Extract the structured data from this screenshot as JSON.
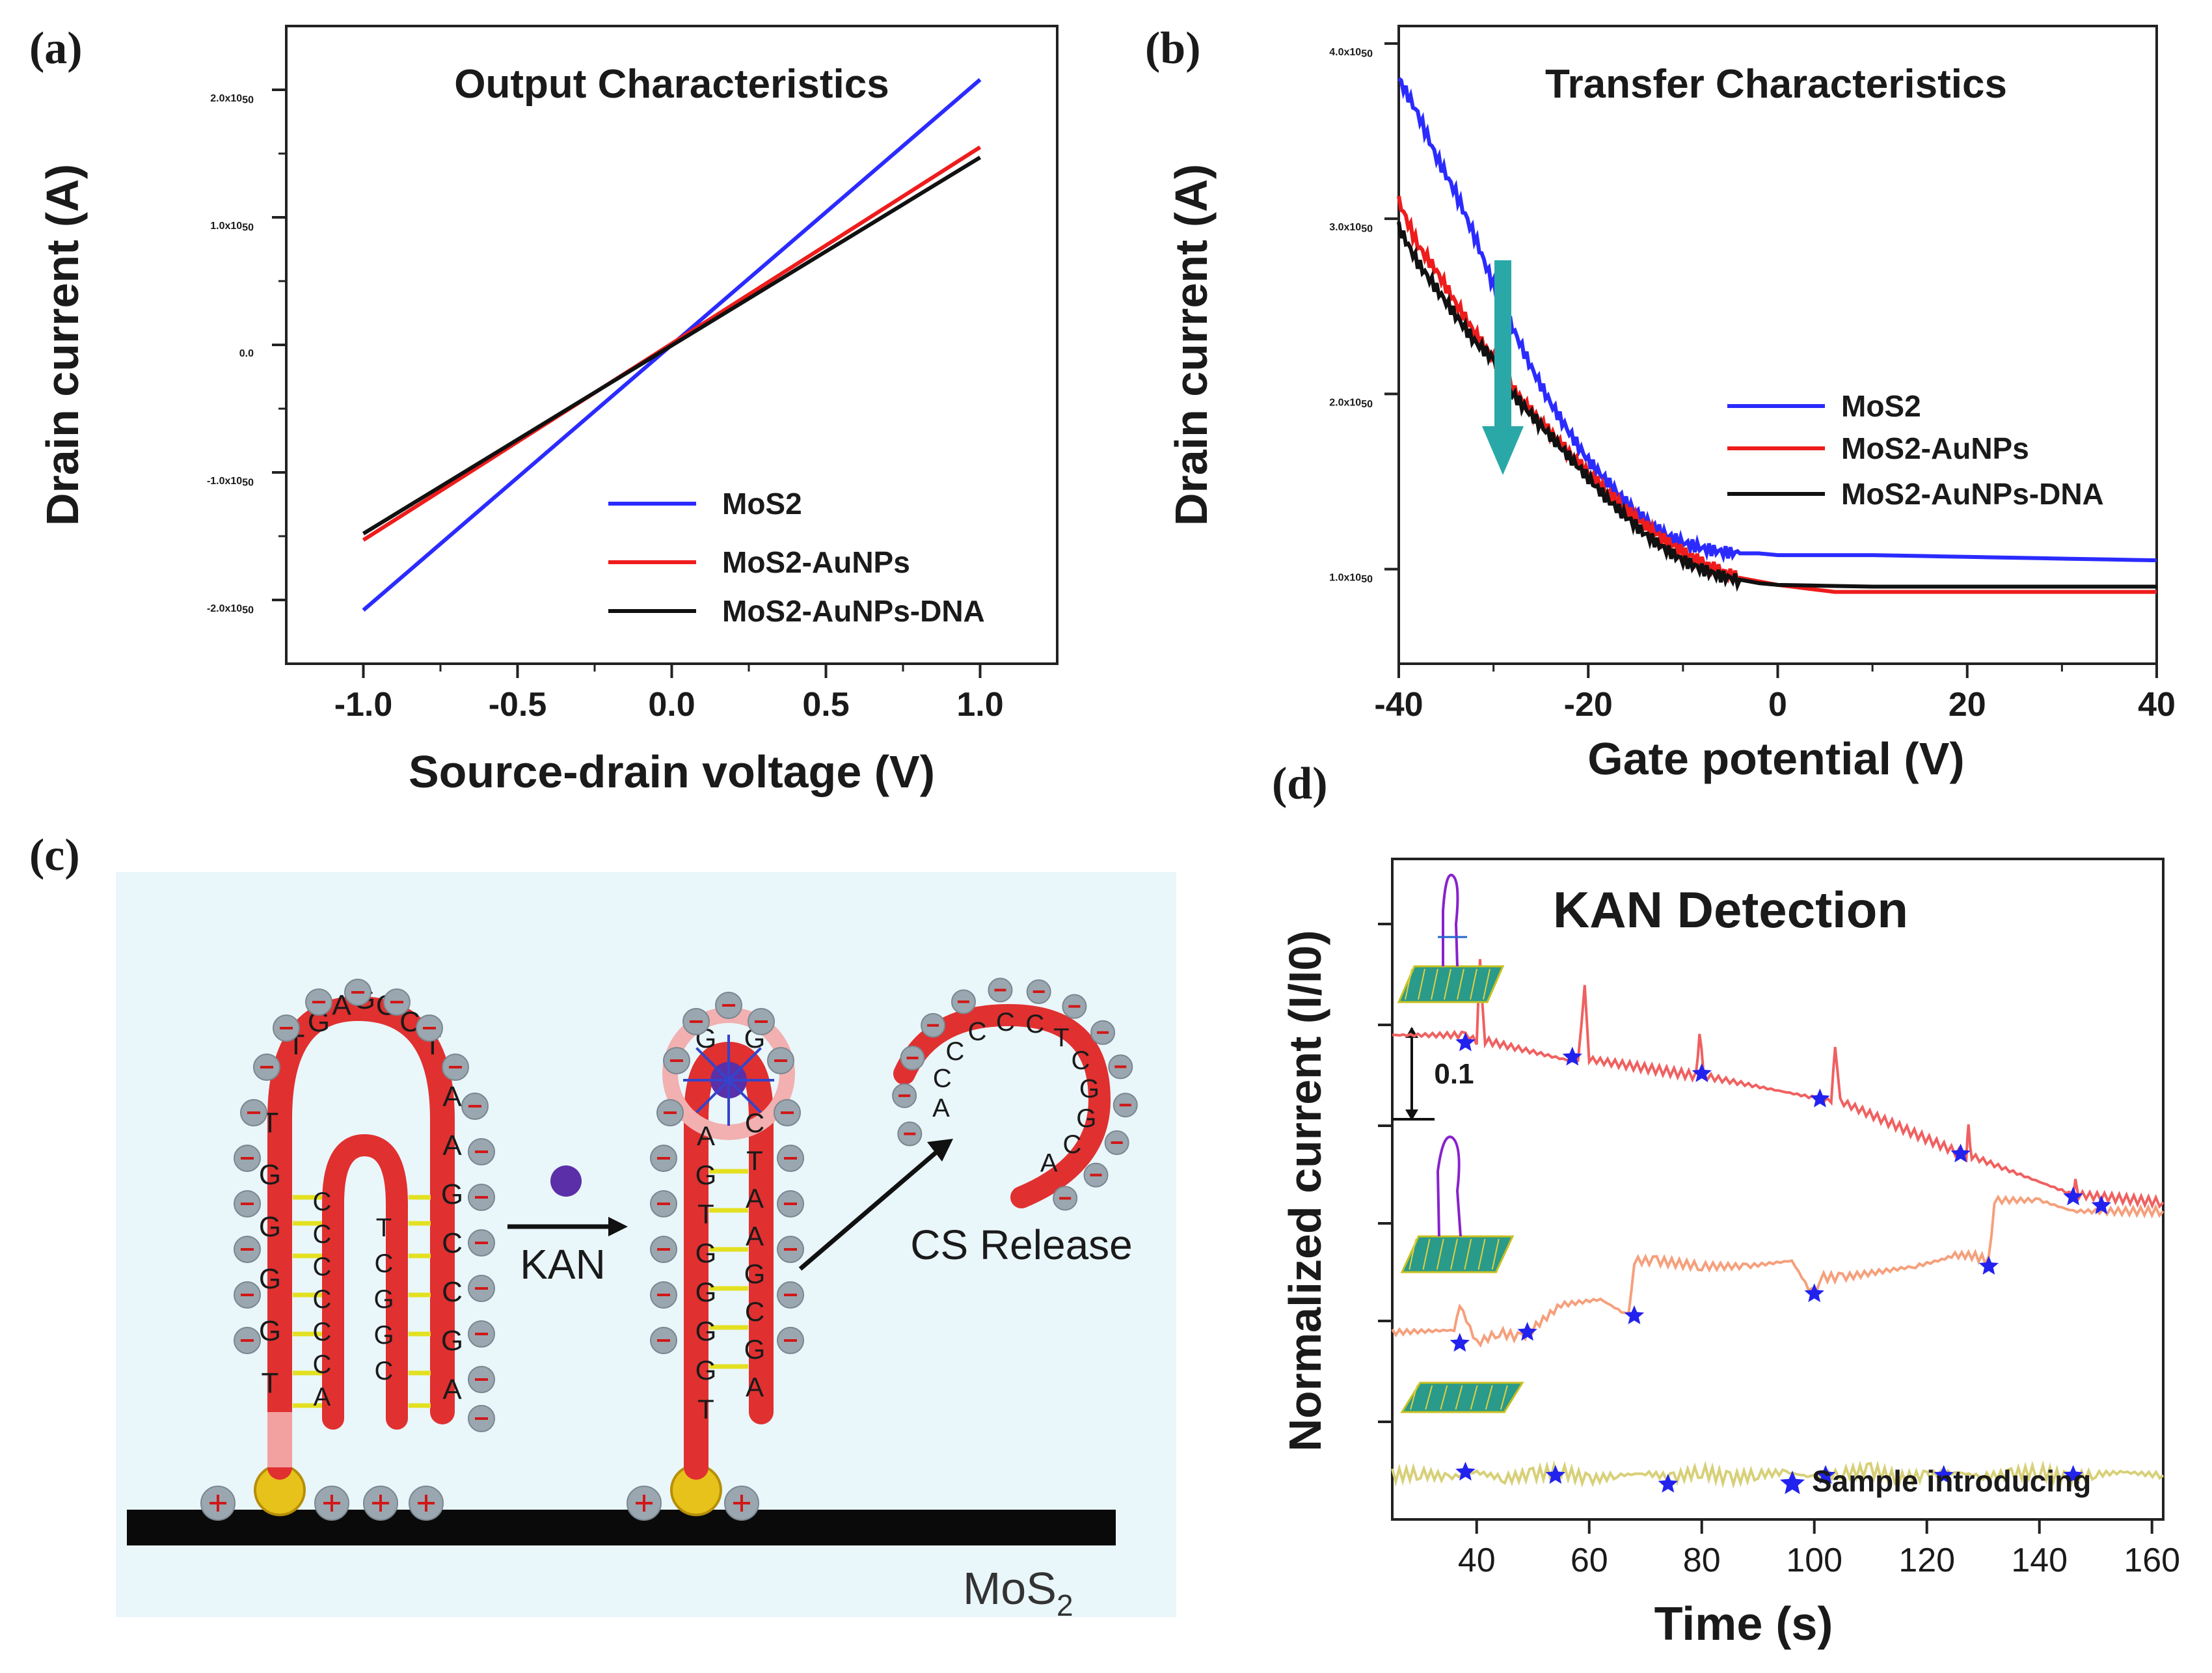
{
  "panels": {
    "a": "(a)",
    "b": "(b)",
    "c": "(c)",
    "d": "(d)"
  },
  "colors": {
    "mos2": "#2b2bff",
    "mos2_aunps": "#ee1c1c",
    "mos2_aunps_dna": "#111111",
    "trace1": "#f06060",
    "trace2": "#f5a07c",
    "trace3": "#d8d078",
    "star": "#2222ee",
    "arrow": "#2aa8a8",
    "probe_bg": "#e9f6fa"
  },
  "chart_data": [
    {
      "type": "line",
      "title": "Output Characteristics",
      "xlabel": "Source-drain voltage (V)",
      "ylabel": "Drain current (A)",
      "xlim": [
        -1.25,
        1.25
      ],
      "ylim": [
        -2.5e-06,
        2.5e-06
      ],
      "xticks": [
        -1.0,
        -0.5,
        0.0,
        0.5,
        1.0
      ],
      "xtick_labels": [
        "-1.0",
        "-0.5",
        "0.0",
        "0.5",
        "1.0"
      ],
      "yticks": [
        -2e-06,
        -1e-06,
        0,
        1e-06,
        2e-06
      ],
      "ytick_labels": [
        "-2.0x10",
        "-1.0x10",
        "0.0",
        "1.0x10",
        "2.0x10"
      ],
      "ytick_exp": [
        "-6",
        "-6",
        "",
        "-6",
        "-6"
      ],
      "legend_position": "bottom-right",
      "series": [
        {
          "name": "MoS2",
          "x": [
            -1.0,
            1.0
          ],
          "y": [
            -2.08e-06,
            2.08e-06
          ]
        },
        {
          "name": "MoS2-AuNPs",
          "x": [
            -1.0,
            1.0
          ],
          "y": [
            -1.53e-06,
            1.55e-06
          ]
        },
        {
          "name": "MoS2-AuNPs-DNA",
          "x": [
            -1.0,
            1.0
          ],
          "y": [
            -1.48e-06,
            1.47e-06
          ]
        }
      ]
    },
    {
      "type": "line",
      "title": "Transfer Characteristics",
      "xlabel": "Gate potential (V)",
      "ylabel": "Drain current (A)",
      "xlim": [
        -40,
        40
      ],
      "ylim": [
        4.6e-07,
        4.1e-06
      ],
      "xticks": [
        -40,
        -20,
        0,
        20,
        40
      ],
      "xtick_labels": [
        "-40",
        "-20",
        "0",
        "20",
        "40"
      ],
      "yticks": [
        1e-06,
        2e-06,
        3e-06,
        4e-06
      ],
      "ytick_labels": [
        "1.0x10",
        "2.0x10",
        "3.0x10",
        "4.0x10"
      ],
      "ytick_exp": [
        "-6",
        "-6",
        "-6",
        "-6"
      ],
      "legend_position": "right",
      "series": [
        {
          "name": "MoS2",
          "x": [
            -40,
            -38,
            -36,
            -34,
            -32,
            -30,
            -28,
            -26,
            -24,
            -22,
            -20,
            -18,
            -16,
            -14,
            -12,
            -10,
            -8,
            -6,
            -4,
            -2,
            0,
            10,
            20,
            30,
            40
          ],
          "y": [
            3.8e-06,
            3.6e-06,
            3.35e-06,
            3.15e-06,
            2.9e-06,
            2.62e-06,
            2.38e-06,
            2.15e-06,
            1.95e-06,
            1.78e-06,
            1.62e-06,
            1.5e-06,
            1.38e-06,
            1.28e-06,
            1.2e-06,
            1.15e-06,
            1.12e-06,
            1.1e-06,
            1.09e-06,
            1.09e-06,
            1.08e-06,
            1.08e-06,
            1.07e-06,
            1.06e-06,
            1.05e-06
          ]
        },
        {
          "name": "MoS2-AuNPs",
          "x": [
            -40,
            -38,
            -36,
            -34,
            -32,
            -30,
            -28,
            -26,
            -24,
            -22,
            -20,
            -18,
            -16,
            -14,
            -12,
            -10,
            -8,
            -6,
            -4,
            -2,
            0,
            6,
            10,
            20,
            30,
            40
          ],
          "y": [
            3.1e-06,
            2.85e-06,
            2.7e-06,
            2.52e-06,
            2.35e-06,
            2.2e-06,
            2.03e-06,
            1.9e-06,
            1.78e-06,
            1.66e-06,
            1.55e-06,
            1.44e-06,
            1.34e-06,
            1.25e-06,
            1.17e-06,
            1.1e-06,
            1.04e-06,
            9.9e-07,
            9.5e-07,
            9.3e-07,
            9.1e-07,
            8.7e-07,
            8.7e-07,
            8.7e-07,
            8.7e-07,
            8.7e-07
          ]
        },
        {
          "name": "MoS2-AuNPs-DNA",
          "x": [
            -40,
            -38,
            -36,
            -34,
            -32,
            -30,
            -28,
            -26,
            -24,
            -22,
            -20,
            -18,
            -16,
            -14,
            -12,
            -10,
            -8,
            -6,
            -4,
            -2,
            0,
            10,
            20,
            30,
            40
          ],
          "y": [
            2.95e-06,
            2.75e-06,
            2.6e-06,
            2.45e-06,
            2.3e-06,
            2.2e-06,
            2e-06,
            1.88e-06,
            1.76e-06,
            1.64e-06,
            1.52e-06,
            1.4e-06,
            1.3e-06,
            1.2e-06,
            1.12e-06,
            1.05e-06,
            1e-06,
            9.6e-07,
            9.4e-07,
            9.2e-07,
            9.1e-07,
            9e-07,
            9e-07,
            9e-07,
            9e-07
          ]
        }
      ]
    },
    {
      "type": "line",
      "title": "KAN Detection",
      "xlabel": "Time (s)",
      "ylabel": "Normalized current (I/I0)",
      "xlim": [
        25,
        162
      ],
      "xticks": [
        40,
        60,
        80,
        100,
        120,
        140,
        160
      ],
      "xtick_labels": [
        "40",
        "60",
        "80",
        "100",
        "120",
        "140",
        "160"
      ],
      "ylim": [
        -0.24,
        0.36
      ],
      "scale_bar_label": "0.1",
      "legend_label": "Sample introducing",
      "legend_position": "bottom-right",
      "series": [
        {
          "x": [
            25,
            38,
            40,
            40.6,
            41.5,
            58,
            59.2,
            60,
            79,
            79.6,
            80.3,
            103,
            103.7,
            104.6,
            127,
            127.4,
            128,
            146,
            146.4,
            147,
            162
          ],
          "y": [
            0.2,
            0.2,
            0.195,
            0.265,
            0.195,
            0.175,
            0.245,
            0.178,
            0.163,
            0.205,
            0.163,
            0.14,
            0.19,
            0.14,
            0.09,
            0.115,
            0.09,
            0.055,
            0.068,
            0.055,
            0.048
          ],
          "markers_x": [
            38,
            57,
            80,
            101,
            126,
            146
          ],
          "markers_y": [
            0.193,
            0.18,
            0.165,
            0.142,
            0.092,
            0.053
          ]
        },
        {
          "x": [
            25,
            36,
            37,
            40,
            44,
            48,
            55,
            62,
            67,
            68,
            72,
            80,
            88,
            96,
            99,
            100,
            101,
            105,
            118,
            122,
            125,
            128,
            131,
            132,
            140,
            146,
            152,
            162
          ],
          "y": [
            -0.07,
            -0.068,
            -0.045,
            -0.08,
            -0.07,
            -0.075,
            -0.045,
            -0.04,
            -0.055,
            -0.005,
            -0.005,
            -0.01,
            -0.01,
            -0.005,
            -0.03,
            -0.035,
            -0.02,
            -0.02,
            -0.01,
            -0.005,
            0.0,
            0.0,
            -0.005,
            0.05,
            0.05,
            0.04,
            0.04,
            0.04
          ],
          "markers_x": [
            37,
            49,
            68,
            100,
            131,
            151
          ],
          "markers_y": [
            -0.08,
            -0.07,
            -0.055,
            -0.035,
            -0.01,
            0.045
          ]
        },
        {
          "x": [
            25,
            30,
            35,
            40,
            45,
            50,
            55,
            60,
            65,
            70,
            75,
            80,
            85,
            90,
            95,
            100,
            105,
            110,
            115,
            120,
            125,
            130,
            135,
            140,
            145,
            150,
            155,
            162
          ],
          "y": [
            -0.2,
            -0.198,
            -0.202,
            -0.197,
            -0.203,
            -0.199,
            -0.196,
            -0.204,
            -0.2,
            -0.198,
            -0.202,
            -0.196,
            -0.203,
            -0.199,
            -0.197,
            -0.202,
            -0.198,
            -0.195,
            -0.203,
            -0.2,
            -0.197,
            -0.201,
            -0.199,
            -0.196,
            -0.203,
            -0.199,
            -0.197,
            -0.2
          ],
          "markers_x": [
            38,
            54,
            74,
            102,
            123,
            146
          ],
          "markers_y": [
            -0.197,
            -0.2,
            -0.208,
            -0.2,
            -0.2,
            -0.2
          ]
        }
      ]
    }
  ],
  "schematic": {
    "kan_label": "KAN",
    "release_label": "CS Release",
    "substrate_label": "MoS",
    "substrate_sub": "2",
    "hairpin1_letters": [
      "T",
      "G",
      "G",
      "G",
      "G",
      "T",
      "T",
      "G",
      "A",
      "G",
      "G",
      "C",
      "T",
      "A",
      "A",
      "G",
      "C",
      "C",
      "G",
      "A"
    ],
    "hairpin1_inner": [
      "C",
      "C",
      "C",
      "C",
      "C",
      "C",
      "A"
    ],
    "hairpin1_inner2": [
      "T",
      "C",
      "G",
      "G",
      "C"
    ],
    "hairpin2_left": [
      "T",
      "G",
      "G",
      "G",
      "G",
      "T",
      "G",
      "A"
    ],
    "hairpin2_right": [
      "C",
      "T",
      "A",
      "A",
      "G",
      "C",
      "G",
      "A"
    ],
    "hairpin2_top": [
      "G",
      "G"
    ],
    "released": [
      "A",
      "C",
      "C",
      "C",
      "C",
      "C",
      "T",
      "C",
      "G",
      "G",
      "C",
      "A"
    ]
  }
}
